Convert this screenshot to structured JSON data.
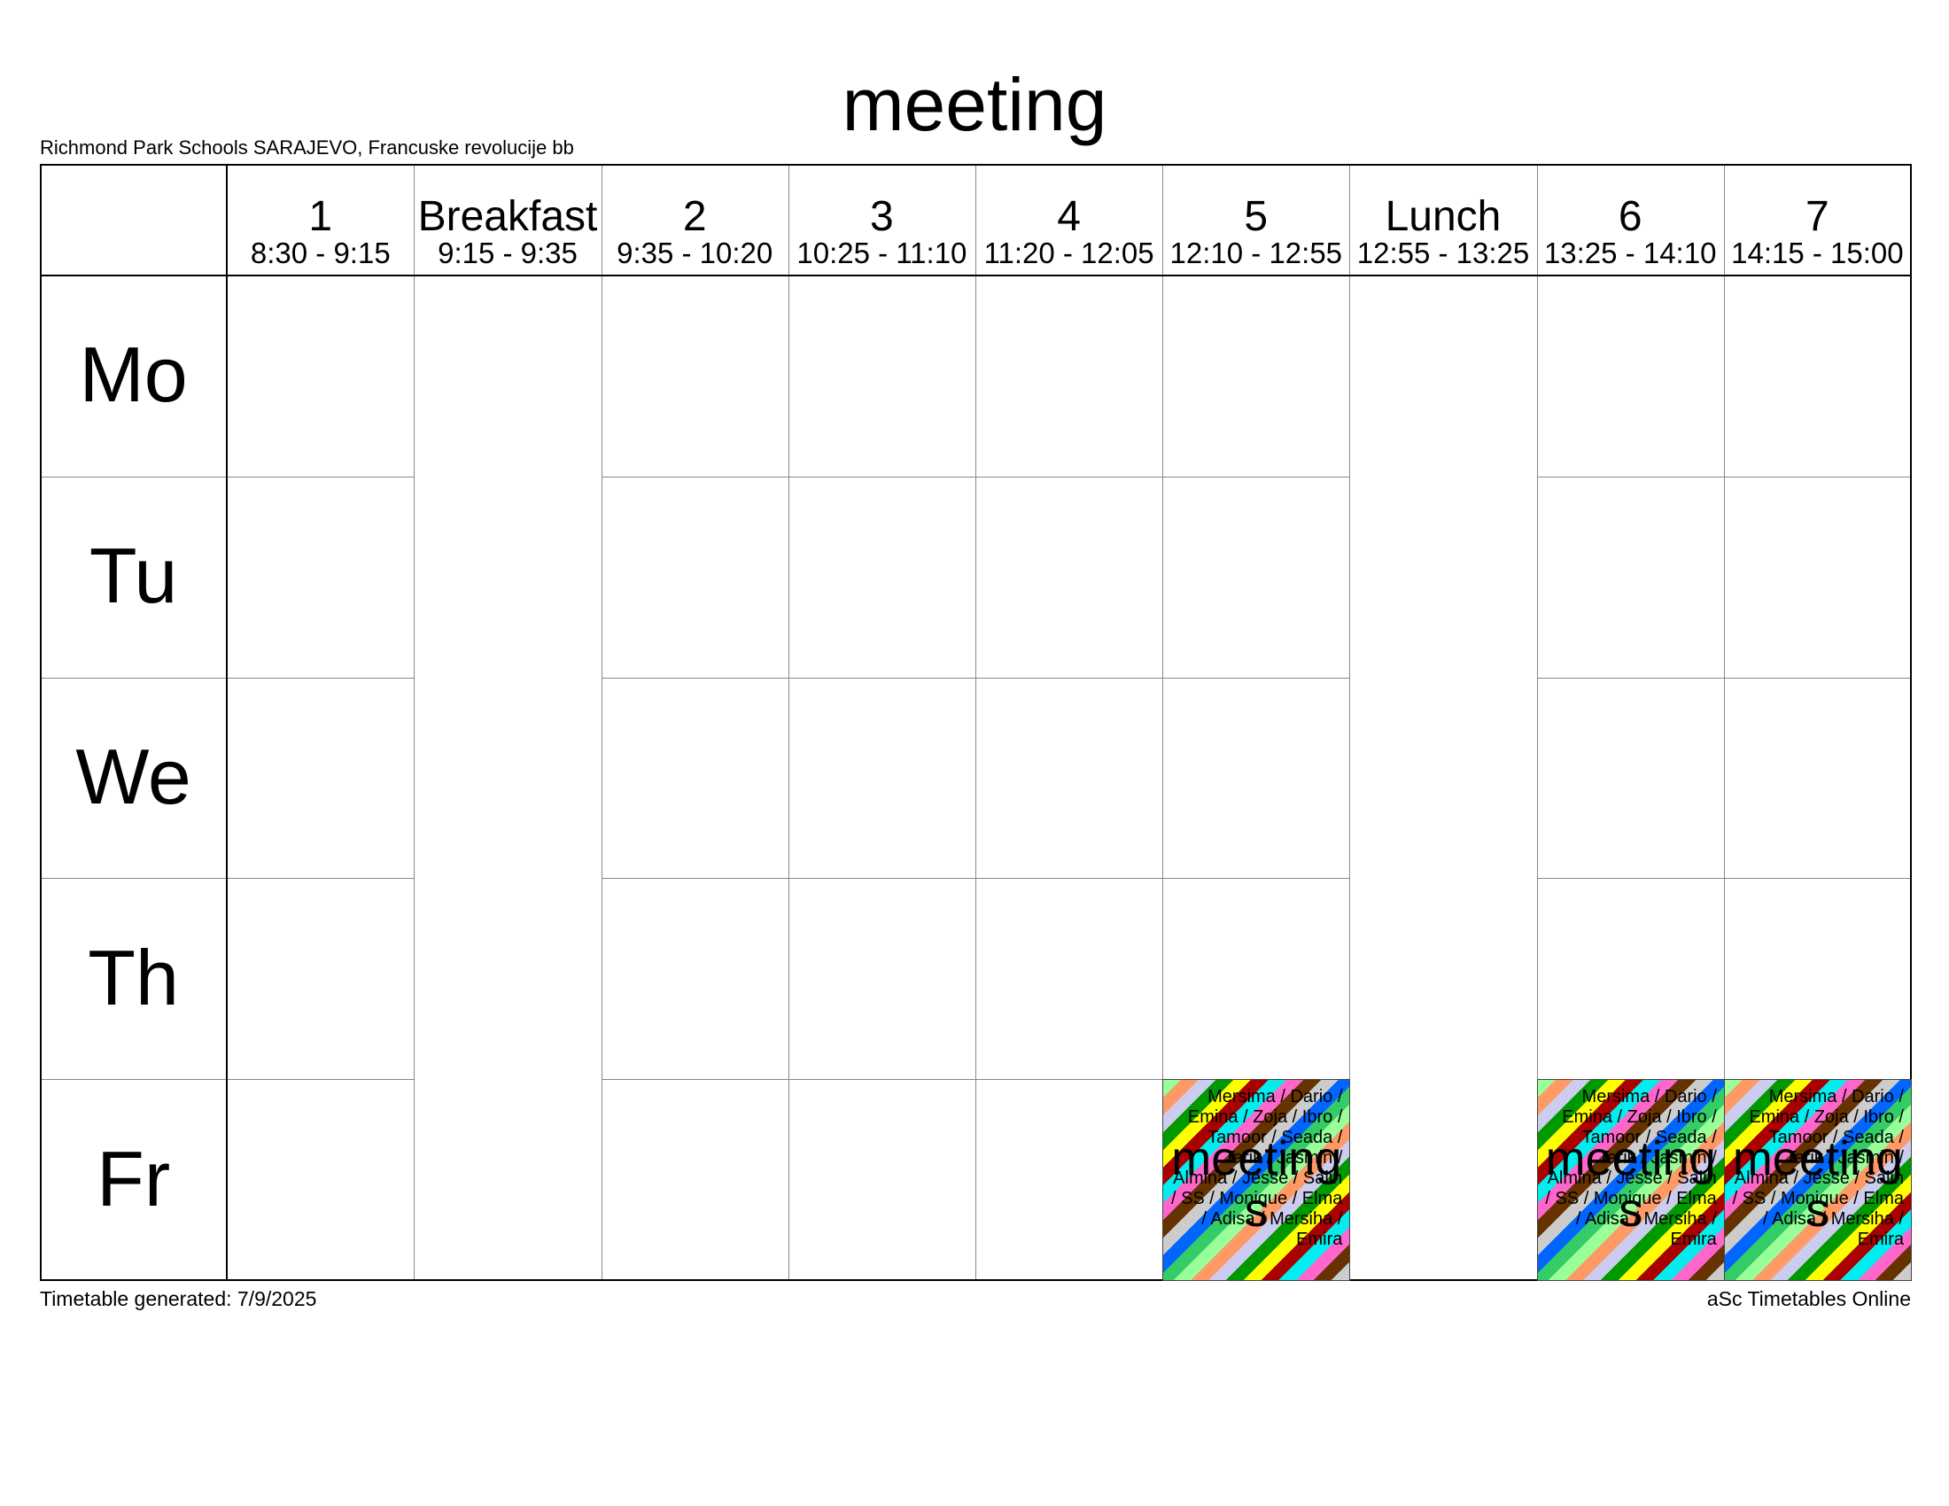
{
  "header": {
    "title": "meeting",
    "subtitle": "Richmond Park Schools SARAJEVO, Francuske revolucije bb"
  },
  "periods": [
    {
      "name": "1",
      "time": "8:30 - 9:15"
    },
    {
      "name": "Breakfast",
      "time": "9:15 - 9:35",
      "break": true
    },
    {
      "name": "2",
      "time": "9:35 - 10:20"
    },
    {
      "name": "3",
      "time": "10:25 - 11:10"
    },
    {
      "name": "4",
      "time": "11:20 - 12:05"
    },
    {
      "name": "5",
      "time": "12:10 - 12:55"
    },
    {
      "name": "Lunch",
      "time": "12:55 - 13:25",
      "break": true
    },
    {
      "name": "6",
      "time": "13:25 - 14:10"
    },
    {
      "name": "7",
      "time": "14:15 - 15:00"
    }
  ],
  "days": [
    "Mo",
    "Tu",
    "We",
    "Th",
    "Fr"
  ],
  "lessons": [
    {
      "day": 4,
      "period": 5,
      "subject": "meetings",
      "teachers": "Mersima / Dario / Emina / Zoja / Ibro / Tamoor / Seada / Tarik / Jasmin / Almina / Jesse / Salih / SS / Monique / Elma / Adisa / Mersiha / Emira"
    },
    {
      "day": 4,
      "period": 7,
      "subject": "meetings",
      "teachers": "Mersima / Dario / Emina / Zoja / Ibro / Tamoor / Seada / Tarik / Jasmin / Almina / Jesse / Salih / SS / Monique / Elma / Adisa / Mersiha / Emira"
    },
    {
      "day": 4,
      "period": 8,
      "subject": "meetings",
      "teachers": "Mersima / Dario / Emina / Zoja / Ibro / Tamoor / Seada / Tarik / Jasmin / Almina / Jesse / Salih / SS / Monique / Elma / Adisa / Mersiha / Emira"
    }
  ],
  "footer": {
    "left": "Timetable generated: 7/9/2025",
    "right": "aSc Timetables Online"
  }
}
